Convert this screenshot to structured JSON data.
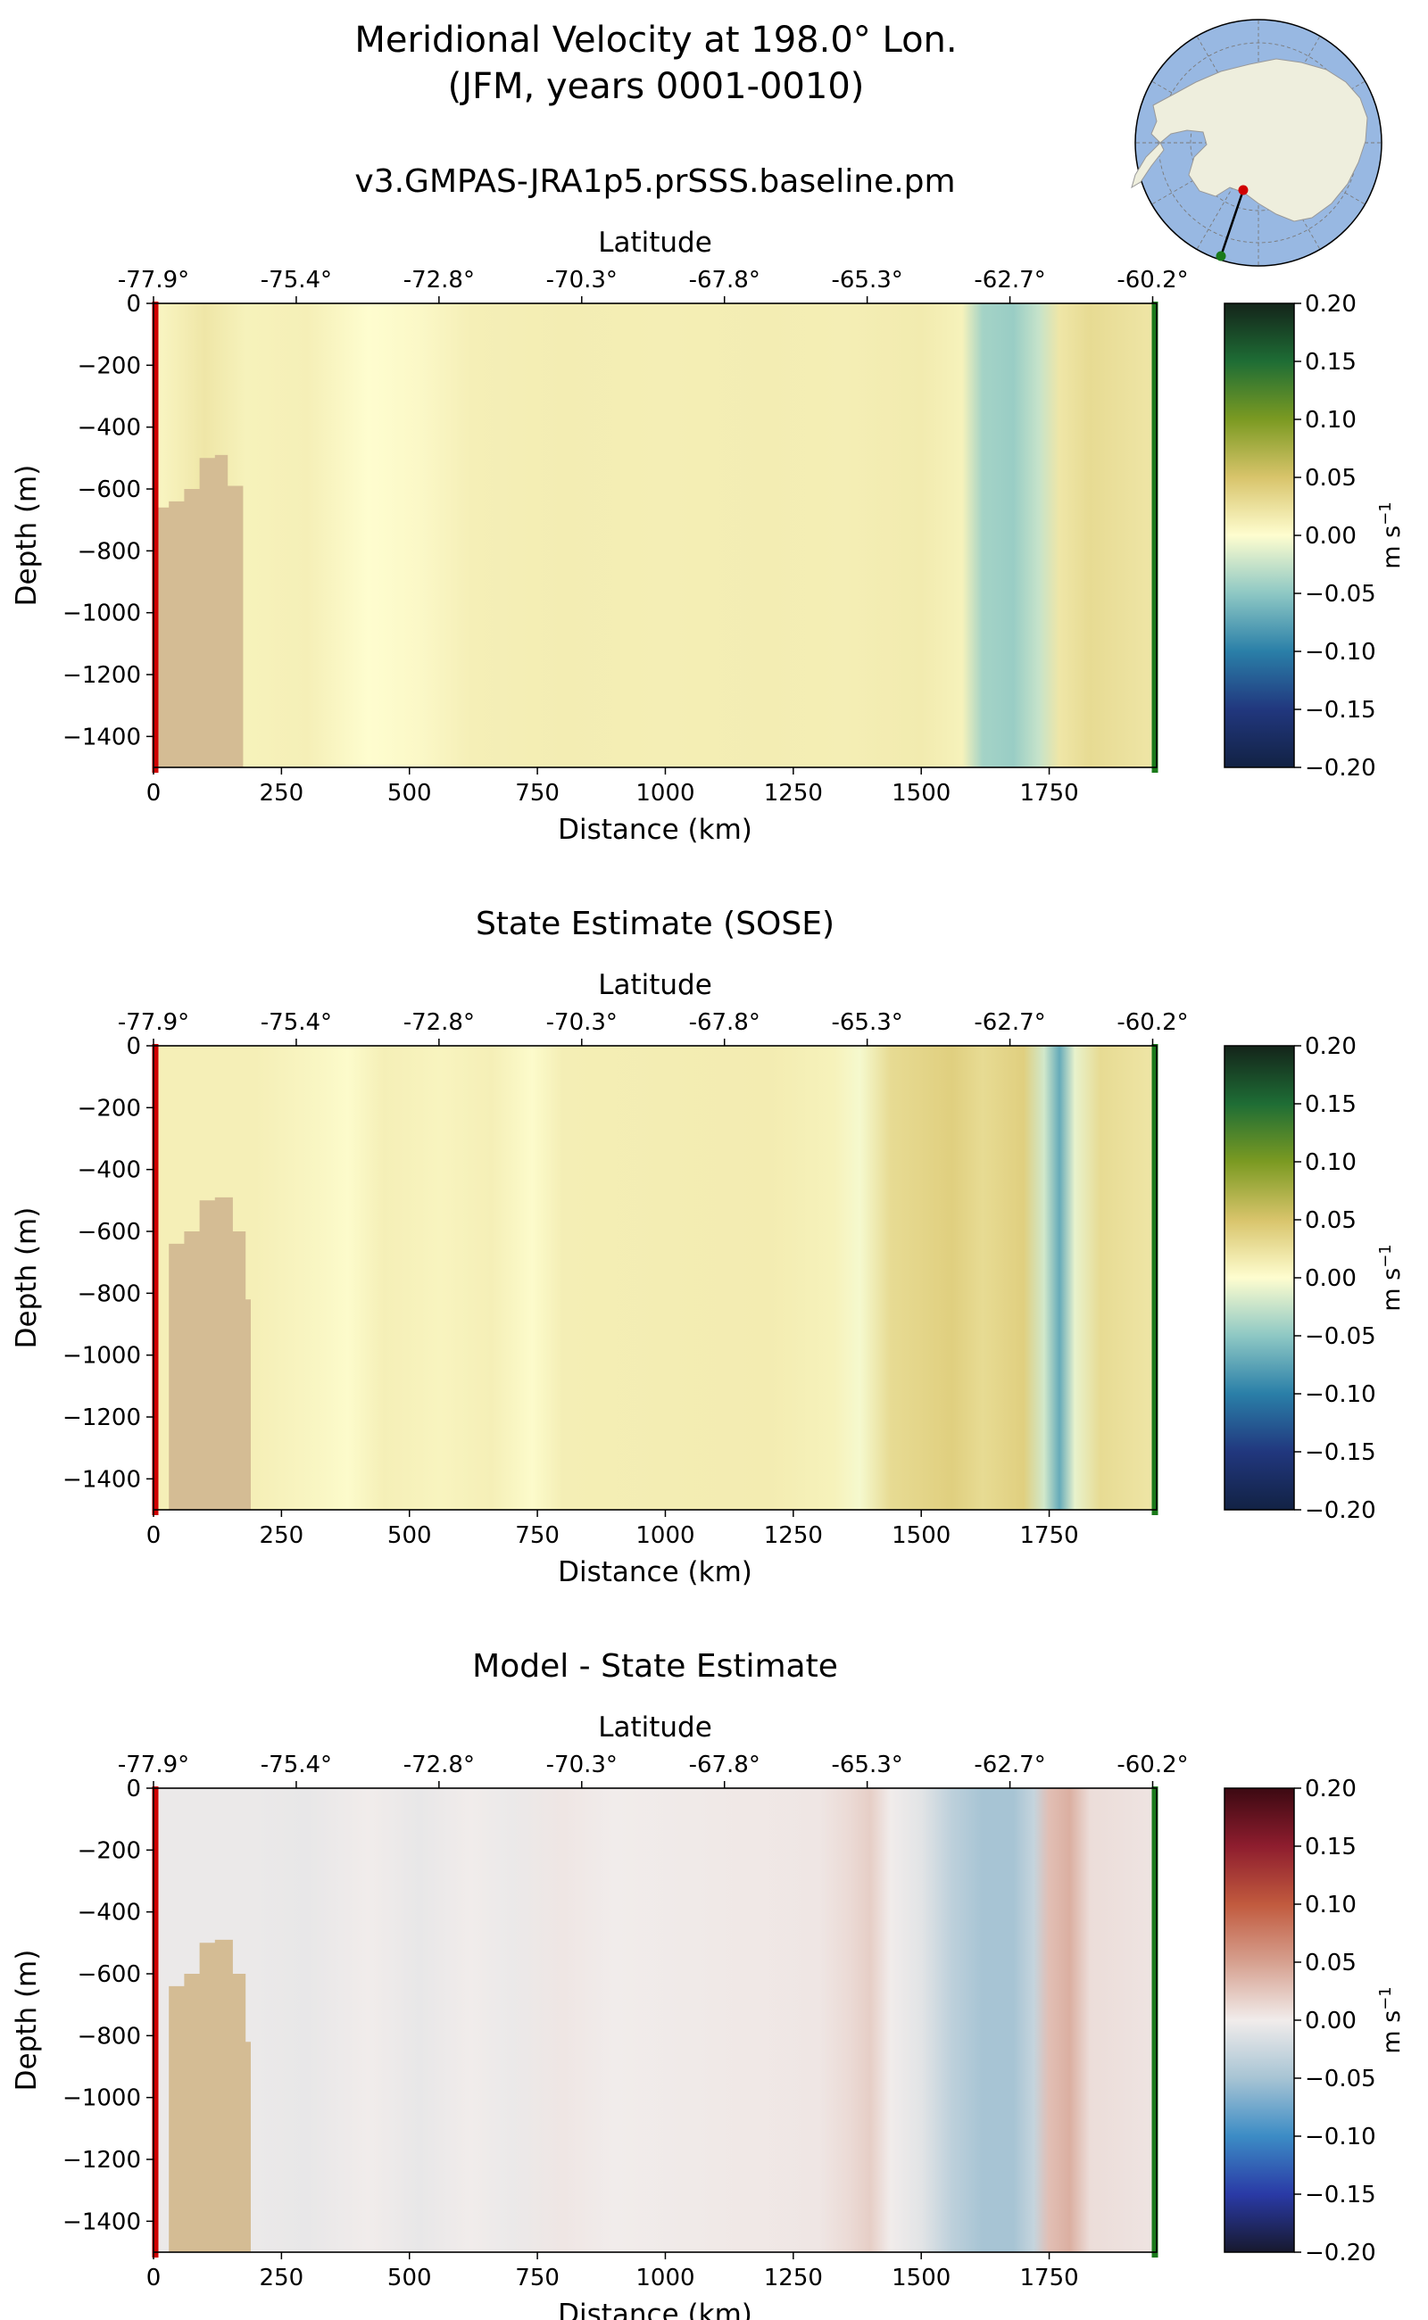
{
  "suptitle_line1": "Meridional Velocity at 198.0° Lon.",
  "suptitle_line2": "(JFM, years 0001-0010)",
  "colors": {
    "land": "#d4bc94",
    "start_marker": "#d00000",
    "end_marker": "#1a7a1a"
  },
  "chart_data": [
    {
      "type": "heatmap",
      "title": "v3.GMPAS-JRA1p5.prSSS.baseline.pm",
      "xlabel": "Distance (km)",
      "ylabel": "Depth (m)",
      "top_xlabel": "Latitude",
      "xlim": [
        0,
        1960
      ],
      "ylim": [
        -1500,
        0
      ],
      "xticks": [
        0,
        250,
        500,
        750,
        1000,
        1250,
        1500,
        1750
      ],
      "yticks": [
        0,
        -200,
        -400,
        -600,
        -800,
        -1000,
        -1200,
        -1400
      ],
      "lat_ticks": [
        "-77.9°",
        "-75.4°",
        "-72.8°",
        "-70.3°",
        "-67.8°",
        "-65.3°",
        "-62.7°",
        "-60.2°"
      ],
      "colorbar": {
        "label": "m s",
        "exponent": "−1",
        "vmin": -0.2,
        "vmax": 0.2,
        "colormap": "delta",
        "ticks": [
          "0.20",
          "0.15",
          "0.10",
          "0.05",
          "0.00",
          "−0.05",
          "−0.10",
          "−0.15",
          "−0.20"
        ]
      },
      "bands": [
        [
          0,
          0.005
        ],
        [
          100,
          0.02
        ],
        [
          180,
          0.01
        ],
        [
          300,
          0.012
        ],
        [
          420,
          0.0
        ],
        [
          520,
          0.004
        ],
        [
          620,
          0.012
        ],
        [
          800,
          0.014
        ],
        [
          1000,
          0.013
        ],
        [
          1200,
          0.014
        ],
        [
          1350,
          0.013
        ],
        [
          1500,
          0.016
        ],
        [
          1580,
          0.01
        ],
        [
          1620,
          -0.04
        ],
        [
          1680,
          -0.045
        ],
        [
          1730,
          -0.025
        ],
        [
          1770,
          0.02
        ],
        [
          1830,
          0.03
        ],
        [
          1960,
          0.02
        ]
      ],
      "bathymetry": [
        [
          0,
          -660
        ],
        [
          30,
          -660
        ],
        [
          30,
          -640
        ],
        [
          60,
          -640
        ],
        [
          60,
          -600
        ],
        [
          90,
          -600
        ],
        [
          90,
          -500
        ],
        [
          120,
          -500
        ],
        [
          120,
          -490
        ],
        [
          145,
          -490
        ],
        [
          145,
          -590
        ],
        [
          175,
          -590
        ],
        [
          175,
          -1500
        ]
      ]
    },
    {
      "type": "heatmap",
      "title": "State Estimate (SOSE)",
      "xlabel": "Distance (km)",
      "ylabel": "Depth (m)",
      "top_xlabel": "Latitude",
      "xlim": [
        0,
        1960
      ],
      "ylim": [
        -1500,
        0
      ],
      "xticks": [
        0,
        250,
        500,
        750,
        1000,
        1250,
        1500,
        1750
      ],
      "yticks": [
        0,
        -200,
        -400,
        -600,
        -800,
        -1000,
        -1200,
        -1400
      ],
      "lat_ticks": [
        "-77.9°",
        "-75.4°",
        "-72.8°",
        "-70.3°",
        "-67.8°",
        "-65.3°",
        "-62.7°",
        "-60.2°"
      ],
      "colorbar": {
        "label": "m s",
        "exponent": "−1",
        "vmin": -0.2,
        "vmax": 0.2,
        "colormap": "delta",
        "ticks": [
          "0.20",
          "0.15",
          "0.10",
          "0.05",
          "0.00",
          "−0.05",
          "−0.10",
          "−0.15",
          "−0.20"
        ]
      },
      "bands": [
        [
          30,
          0.012
        ],
        [
          200,
          0.012
        ],
        [
          320,
          0.006
        ],
        [
          380,
          0.002
        ],
        [
          450,
          0.012
        ],
        [
          560,
          0.008
        ],
        [
          660,
          0.012
        ],
        [
          740,
          0.002
        ],
        [
          800,
          0.013
        ],
        [
          1000,
          0.014
        ],
        [
          1200,
          0.015
        ],
        [
          1330,
          0.01
        ],
        [
          1380,
          -0.004
        ],
        [
          1440,
          0.03
        ],
        [
          1560,
          0.04
        ],
        [
          1620,
          0.03
        ],
        [
          1700,
          0.04
        ],
        [
          1740,
          -0.02
        ],
        [
          1770,
          -0.07
        ],
        [
          1800,
          -0.01
        ],
        [
          1850,
          0.03
        ],
        [
          1960,
          0.02
        ]
      ],
      "bathymetry": [
        [
          0,
          -1500
        ],
        [
          30,
          -1500
        ],
        [
          30,
          -640
        ],
        [
          60,
          -640
        ],
        [
          60,
          -600
        ],
        [
          90,
          -600
        ],
        [
          90,
          -500
        ],
        [
          120,
          -500
        ],
        [
          120,
          -490
        ],
        [
          155,
          -490
        ],
        [
          155,
          -600
        ],
        [
          180,
          -600
        ],
        [
          180,
          -820
        ],
        [
          190,
          -820
        ],
        [
          190,
          -1500
        ]
      ]
    },
    {
      "type": "heatmap",
      "title": "Model - State Estimate",
      "xlabel": "Distance (km)",
      "ylabel": "Depth (m)",
      "top_xlabel": "Latitude",
      "xlim": [
        0,
        1960
      ],
      "ylim": [
        -1500,
        0
      ],
      "xticks": [
        0,
        250,
        500,
        750,
        1000,
        1250,
        1500,
        1750
      ],
      "yticks": [
        0,
        -200,
        -400,
        -600,
        -800,
        -1000,
        -1200,
        -1400
      ],
      "lat_ticks": [
        "-77.9°",
        "-75.4°",
        "-72.8°",
        "-70.3°",
        "-67.8°",
        "-65.3°",
        "-62.7°",
        "-60.2°"
      ],
      "colorbar": {
        "label": "m s",
        "exponent": "−1",
        "vmin": -0.2,
        "vmax": 0.2,
        "colormap": "balance",
        "ticks": [
          "0.20",
          "0.15",
          "0.10",
          "0.05",
          "0.00",
          "−0.05",
          "−0.10",
          "−0.15",
          "−0.20"
        ]
      },
      "bands": [
        [
          30,
          -0.004
        ],
        [
          200,
          -0.004
        ],
        [
          300,
          -0.006
        ],
        [
          420,
          0.0
        ],
        [
          520,
          -0.006
        ],
        [
          620,
          0.0
        ],
        [
          700,
          -0.004
        ],
        [
          800,
          0.004
        ],
        [
          900,
          0.0
        ],
        [
          1100,
          0.002
        ],
        [
          1300,
          0.004
        ],
        [
          1360,
          0.012
        ],
        [
          1400,
          0.02
        ],
        [
          1440,
          0.0
        ],
        [
          1500,
          -0.01
        ],
        [
          1560,
          -0.035
        ],
        [
          1620,
          -0.05
        ],
        [
          1680,
          -0.05
        ],
        [
          1720,
          -0.03
        ],
        [
          1750,
          0.03
        ],
        [
          1790,
          0.04
        ],
        [
          1830,
          0.01
        ],
        [
          1960,
          0.005
        ]
      ],
      "bathymetry": [
        [
          0,
          -1500
        ],
        [
          30,
          -1500
        ],
        [
          30,
          -640
        ],
        [
          60,
          -640
        ],
        [
          60,
          -600
        ],
        [
          90,
          -600
        ],
        [
          90,
          -500
        ],
        [
          120,
          -500
        ],
        [
          120,
          -490
        ],
        [
          155,
          -490
        ],
        [
          155,
          -600
        ],
        [
          180,
          -600
        ],
        [
          180,
          -820
        ],
        [
          190,
          -820
        ],
        [
          190,
          -1500
        ]
      ]
    }
  ],
  "map_inset": {
    "type": "south-polar-map",
    "section_start_lat": -77.9,
    "section_end_lat": -60.2,
    "section_lon": 198.0
  }
}
